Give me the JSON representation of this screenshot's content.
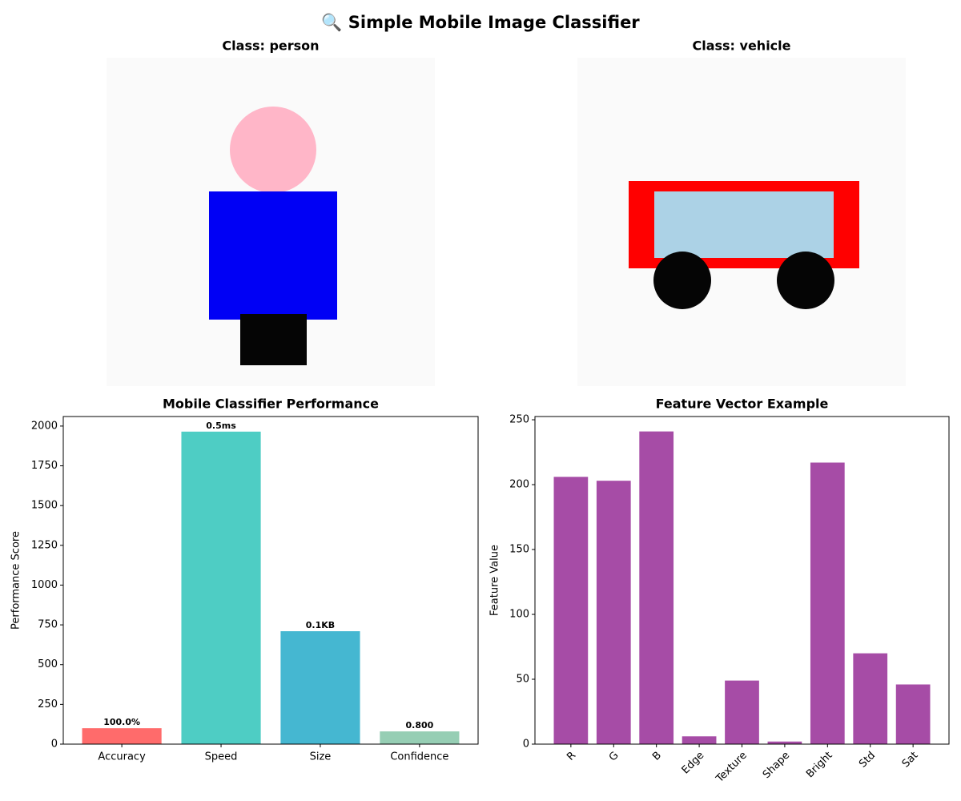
{
  "title": "🔍 Simple Mobile Image Classifier",
  "chart_data": [
    {
      "type": "image",
      "title": "Class: person"
    },
    {
      "type": "image",
      "title": "Class: vehicle"
    },
    {
      "type": "bar",
      "title": "Mobile Classifier Performance",
      "y_label": "Performance Score",
      "categories": [
        "Accuracy",
        "Speed",
        "Size",
        "Confidence"
      ],
      "values": [
        100,
        1965,
        710,
        80
      ],
      "annotations": [
        "100.0%",
        "0.5ms",
        "0.1KB",
        "0.800"
      ],
      "colors": [
        "#ff6b6b",
        "#4ecdc4",
        "#45b7d1",
        "#96ceb4"
      ],
      "ylim": [
        0,
        2060
      ],
      "yticks": [
        0,
        250,
        500,
        750,
        1000,
        1250,
        1500,
        1750,
        2000
      ]
    },
    {
      "type": "bar",
      "title": "Feature Vector Example",
      "y_label": "Feature Value",
      "categories": [
        "R",
        "G",
        "B",
        "Edge",
        "Texture",
        "Shape",
        "Bright",
        "Std",
        "Sat"
      ],
      "values": [
        206,
        203,
        241,
        6,
        49,
        2,
        217,
        70,
        46
      ],
      "color": "#a64ca6",
      "rotate_labels": true,
      "ylim": [
        0,
        252.5
      ],
      "yticks": [
        0,
        50,
        100,
        150,
        200,
        250
      ]
    }
  ]
}
